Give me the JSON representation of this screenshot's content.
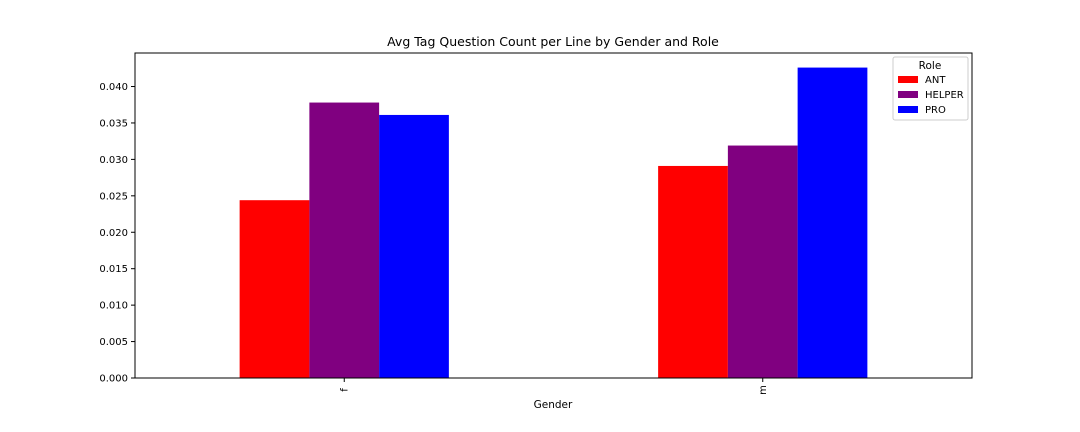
{
  "chart_data": {
    "type": "bar",
    "title": "Avg Tag Question Count per Line by Gender and Role",
    "xlabel": "Gender",
    "ylabel": "",
    "categories": [
      "f",
      "m"
    ],
    "series": [
      {
        "name": "ANT",
        "color": "#ff0000",
        "values": [
          0.0244,
          0.0291
        ]
      },
      {
        "name": "HELPER",
        "color": "#800080",
        "values": [
          0.0378,
          0.0319
        ]
      },
      {
        "name": "PRO",
        "color": "#0000ff",
        "values": [
          0.0361,
          0.0426
        ]
      }
    ],
    "ylim": [
      0,
      0.0446
    ],
    "yticks": [
      "0.000",
      "0.005",
      "0.010",
      "0.015",
      "0.020",
      "0.025",
      "0.030",
      "0.035",
      "0.040"
    ],
    "ytick_values": [
      0,
      0.005,
      0.01,
      0.015,
      0.02,
      0.025,
      0.03,
      0.035,
      0.04
    ],
    "legend": {
      "title": "Role",
      "placement": "top-right"
    },
    "grid": false
  }
}
